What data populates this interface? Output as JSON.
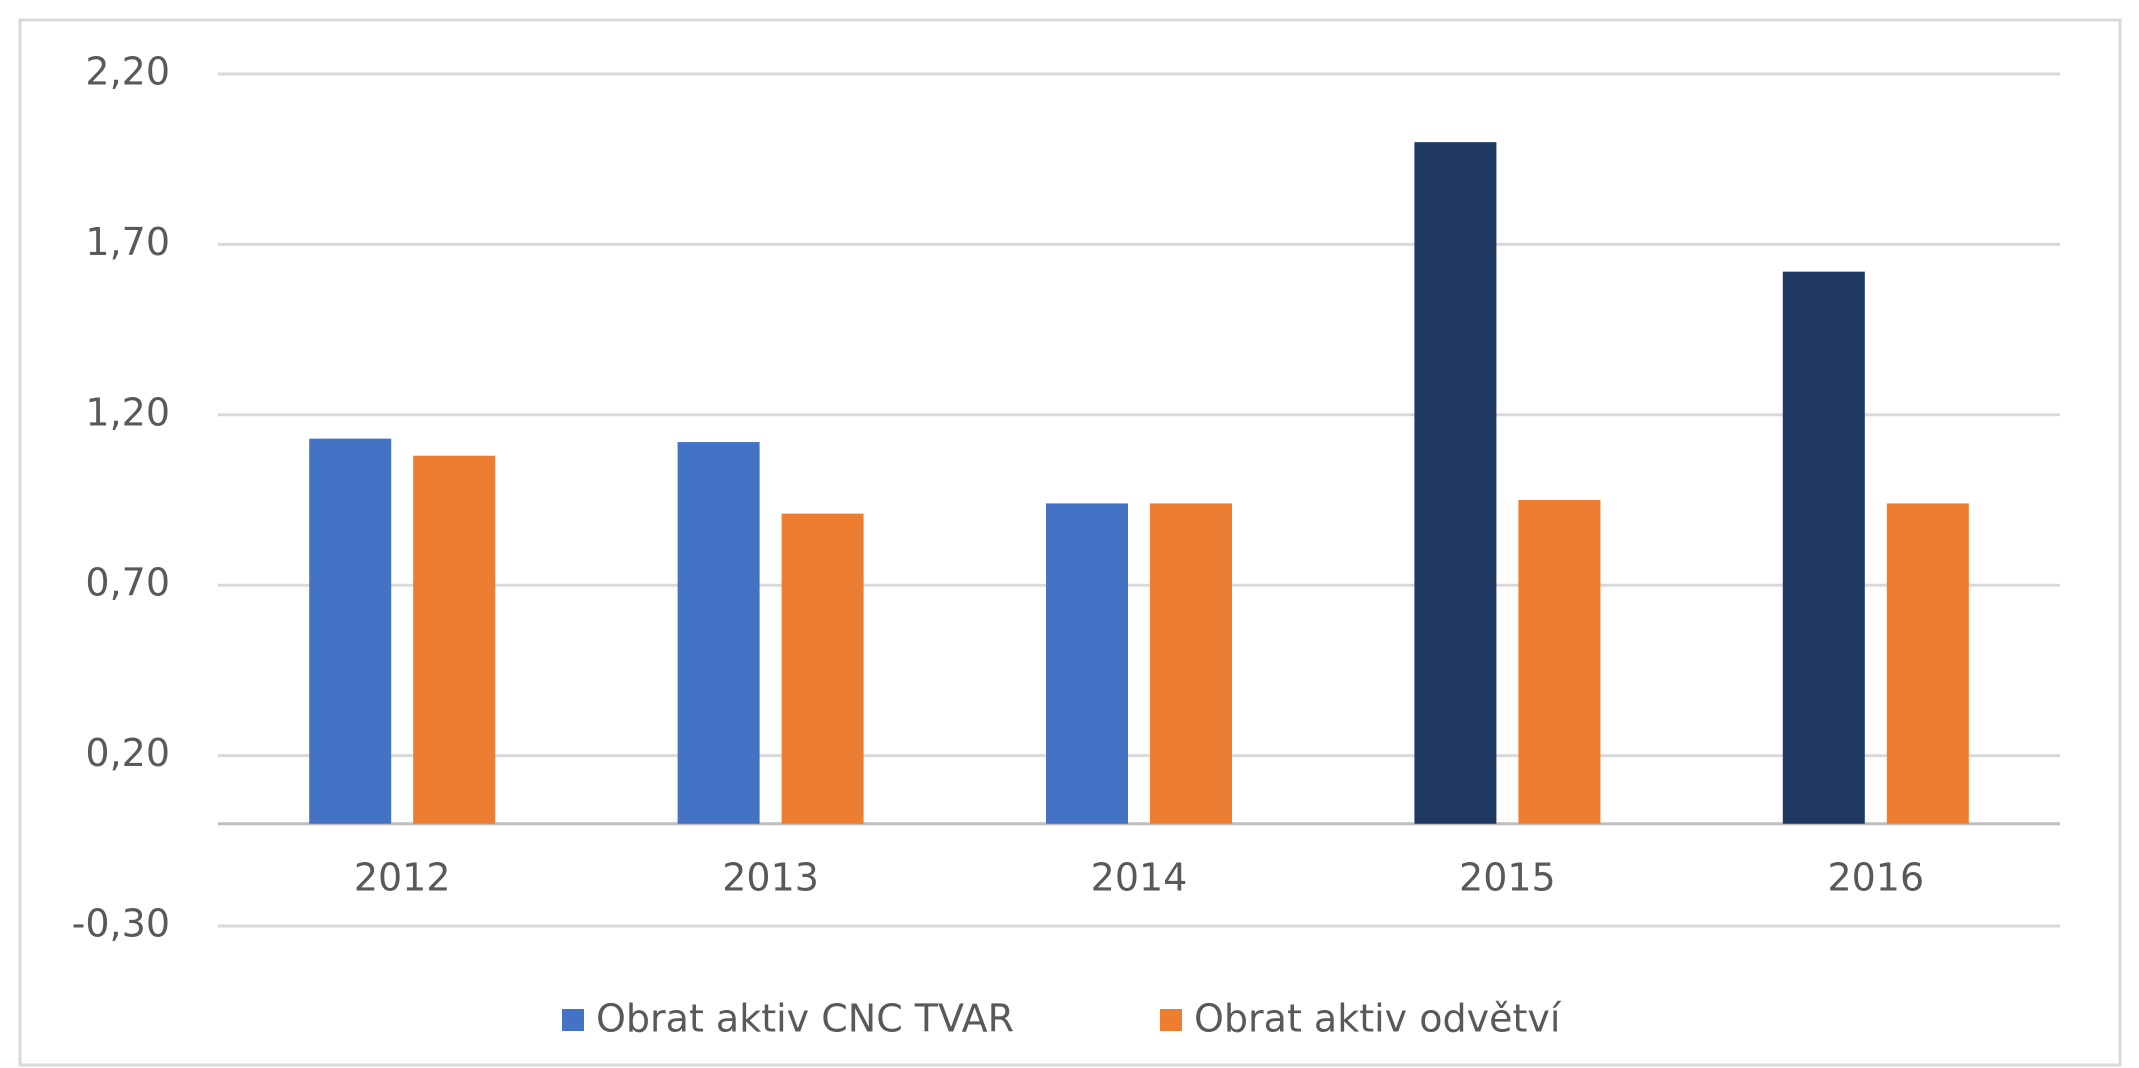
{
  "chart_data": {
    "type": "bar",
    "categories": [
      "2012",
      "2013",
      "2014",
      "2015",
      "2016"
    ],
    "series": [
      {
        "name": "Obrat aktiv CNC TVAR",
        "color": "#4472c4",
        "colors": [
          "#4472c4",
          "#4472c4",
          "#4472c4",
          "#1f3864",
          "#1f3864"
        ],
        "values": [
          1.13,
          1.12,
          0.94,
          2.0,
          1.62
        ]
      },
      {
        "name": "Obrat aktiv odvětví",
        "color": "#ed7d31",
        "values": [
          1.08,
          0.91,
          0.94,
          0.95,
          0.94
        ]
      }
    ],
    "ylim": [
      -0.3,
      2.2
    ],
    "yticks": [
      {
        "value": -0.3,
        "label": "-0,30"
      },
      {
        "value": 0.2,
        "label": "0,20"
      },
      {
        "value": 0.7,
        "label": "0,70"
      },
      {
        "value": 1.2,
        "label": "1,20"
      },
      {
        "value": 1.7,
        "label": "1,70"
      },
      {
        "value": 2.2,
        "label": "2,20"
      }
    ],
    "grid": true,
    "legend": "bottom"
  }
}
